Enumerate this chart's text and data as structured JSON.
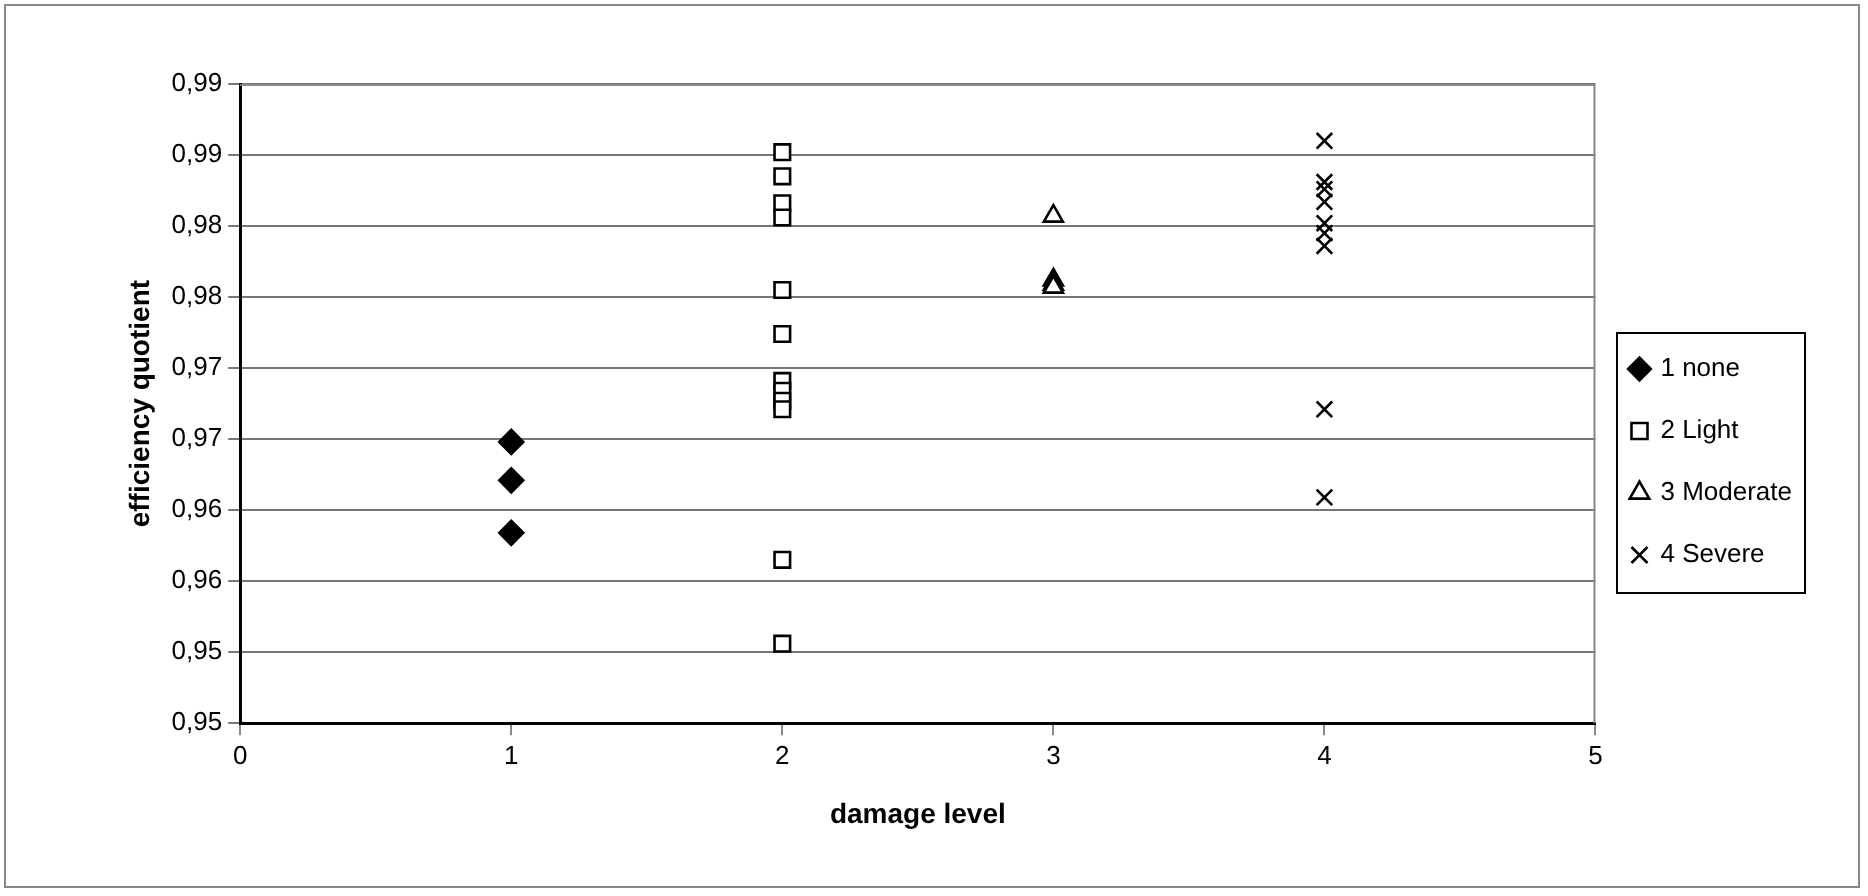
{
  "chart_data": {
    "type": "scatter",
    "xlabel": "damage level",
    "ylabel": "efficiency quotient",
    "xlim": [
      0,
      5
    ],
    "xticks": [
      0,
      1,
      2,
      3,
      4,
      5
    ],
    "ylim": [
      0.95,
      0.995
    ],
    "yticks": [
      {
        "value": 0.95,
        "label": "0,95"
      },
      {
        "value": 0.955,
        "label": "0,95"
      },
      {
        "value": 0.96,
        "label": "0,96"
      },
      {
        "value": 0.965,
        "label": "0,96"
      },
      {
        "value": 0.97,
        "label": "0,97"
      },
      {
        "value": 0.975,
        "label": "0,97"
      },
      {
        "value": 0.98,
        "label": "0,98"
      },
      {
        "value": 0.985,
        "label": "0,98"
      },
      {
        "value": 0.99,
        "label": "0,99"
      },
      {
        "value": 0.995,
        "label": "0,99"
      }
    ],
    "grid": "y",
    "legend": "right",
    "series": [
      {
        "name": "1 none",
        "color": "#000000",
        "marker": "diamond",
        "x": [
          1,
          1,
          1
        ],
        "values": [
          0.9698,
          0.9671,
          0.9634
        ]
      },
      {
        "name": "2 Light",
        "color": "#000000",
        "marker": "square",
        "x": [
          2,
          2,
          2,
          2,
          2,
          2,
          2,
          2,
          2,
          2,
          2,
          2
        ],
        "values": [
          0.9902,
          0.9885,
          0.9866,
          0.9856,
          0.9805,
          0.9774,
          0.9741,
          0.9734,
          0.9727,
          0.9721,
          0.9615,
          0.9556
        ]
      },
      {
        "name": "3 Moderate",
        "color": "#000000",
        "marker": "triangle",
        "x": [
          3,
          3,
          3,
          3
        ],
        "values": [
          0.9857,
          0.9812,
          0.9809,
          0.9807
        ]
      },
      {
        "name": "4 Severe",
        "color": "#000000",
        "marker": "cross",
        "x": [
          4,
          4,
          4,
          4,
          4,
          4,
          4,
          4,
          4
        ],
        "values": [
          0.991,
          0.9881,
          0.9876,
          0.9867,
          0.9852,
          0.9845,
          0.9836,
          0.9721,
          0.9659
        ]
      }
    ]
  }
}
